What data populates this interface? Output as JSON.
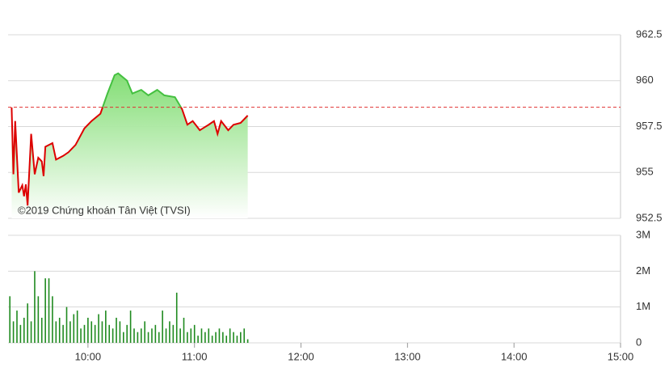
{
  "chart_data": [
    {
      "type": "area",
      "annotation": "©2019 Chứng khoán Tân Việt (TVSI)",
      "x": [
        557,
        558,
        559,
        561,
        563,
        564,
        565,
        566,
        568,
        570,
        572,
        574,
        575,
        576,
        580,
        582,
        586,
        589,
        593,
        598,
        602,
        607,
        611,
        615,
        617,
        622,
        625,
        630,
        634,
        639,
        643,
        649,
        653,
        656,
        659,
        663,
        668,
        671,
        673,
        675,
        679,
        682,
        686,
        690
      ],
      "values": [
        958.54,
        954.9,
        957.8,
        953.9,
        954.3,
        953.7,
        954.35,
        953.2,
        957.1,
        954.9,
        955.8,
        955.6,
        954.8,
        956.4,
        956.6,
        955.7,
        955.9,
        956.1,
        956.5,
        957.4,
        957.8,
        958.2,
        959.3,
        960.3,
        960.4,
        960.0,
        959.3,
        959.5,
        959.2,
        959.5,
        959.2,
        959.1,
        958.45,
        957.6,
        957.8,
        957.3,
        957.6,
        957.8,
        957.1,
        957.8,
        957.3,
        957.6,
        957.7,
        958.1
      ],
      "reference": 958.55,
      "reference_color": "#e03030",
      "color_above": "#44c040",
      "color_below": "#dd0000",
      "fill_color": "#7ddc6e",
      "xlim": [
        555,
        900
      ],
      "ylim": [
        952.5,
        962.5
      ],
      "yticks": [
        962.5,
        960,
        957.5,
        955,
        952.5
      ],
      "grid": true
    },
    {
      "type": "bar",
      "x": [
        556,
        558,
        560,
        562,
        564,
        566,
        568,
        570,
        572,
        574,
        576,
        578,
        580,
        582,
        584,
        586,
        588,
        590,
        592,
        594,
        596,
        598,
        600,
        602,
        604,
        606,
        608,
        610,
        612,
        614,
        616,
        618,
        620,
        622,
        624,
        626,
        628,
        630,
        632,
        634,
        636,
        638,
        640,
        642,
        644,
        646,
        648,
        650,
        652,
        654,
        656,
        658,
        660,
        662,
        664,
        666,
        668,
        670,
        672,
        674,
        676,
        678,
        680,
        682,
        684,
        686,
        688,
        690
      ],
      "values": [
        1300000,
        600000,
        900000,
        500000,
        700000,
        1100000,
        600000,
        2000000,
        1300000,
        700000,
        1800000,
        1800000,
        1300000,
        600000,
        700000,
        500000,
        1000000,
        600000,
        800000,
        900000,
        400000,
        500000,
        700000,
        600000,
        500000,
        800000,
        600000,
        900000,
        500000,
        400000,
        700000,
        600000,
        300000,
        500000,
        900000,
        400000,
        300000,
        400000,
        600000,
        300000,
        400000,
        500000,
        300000,
        900000,
        400000,
        600000,
        500000,
        1400000,
        400000,
        700000,
        300000,
        400000,
        500000,
        200000,
        400000,
        300000,
        400000,
        200000,
        300000,
        400000,
        300000,
        200000,
        400000,
        300000,
        200000,
        300000,
        400000,
        100000
      ],
      "color": "#1f8a1f",
      "xlim": [
        555,
        900
      ],
      "xticks": [
        {
          "value": 600,
          "label": "10:00"
        },
        {
          "value": 660,
          "label": "11:00"
        },
        {
          "value": 720,
          "label": "12:00"
        },
        {
          "value": 780,
          "label": "13:00"
        },
        {
          "value": 840,
          "label": "14:00"
        },
        {
          "value": 900,
          "label": "15:00"
        }
      ],
      "ylim": [
        0,
        3000000
      ],
      "yticks": [
        0,
        {
          "value": 1000000,
          "label": "1M"
        },
        {
          "value": 2000000,
          "label": "2M"
        },
        {
          "value": 3000000,
          "label": "3M"
        }
      ],
      "grid": true
    }
  ]
}
